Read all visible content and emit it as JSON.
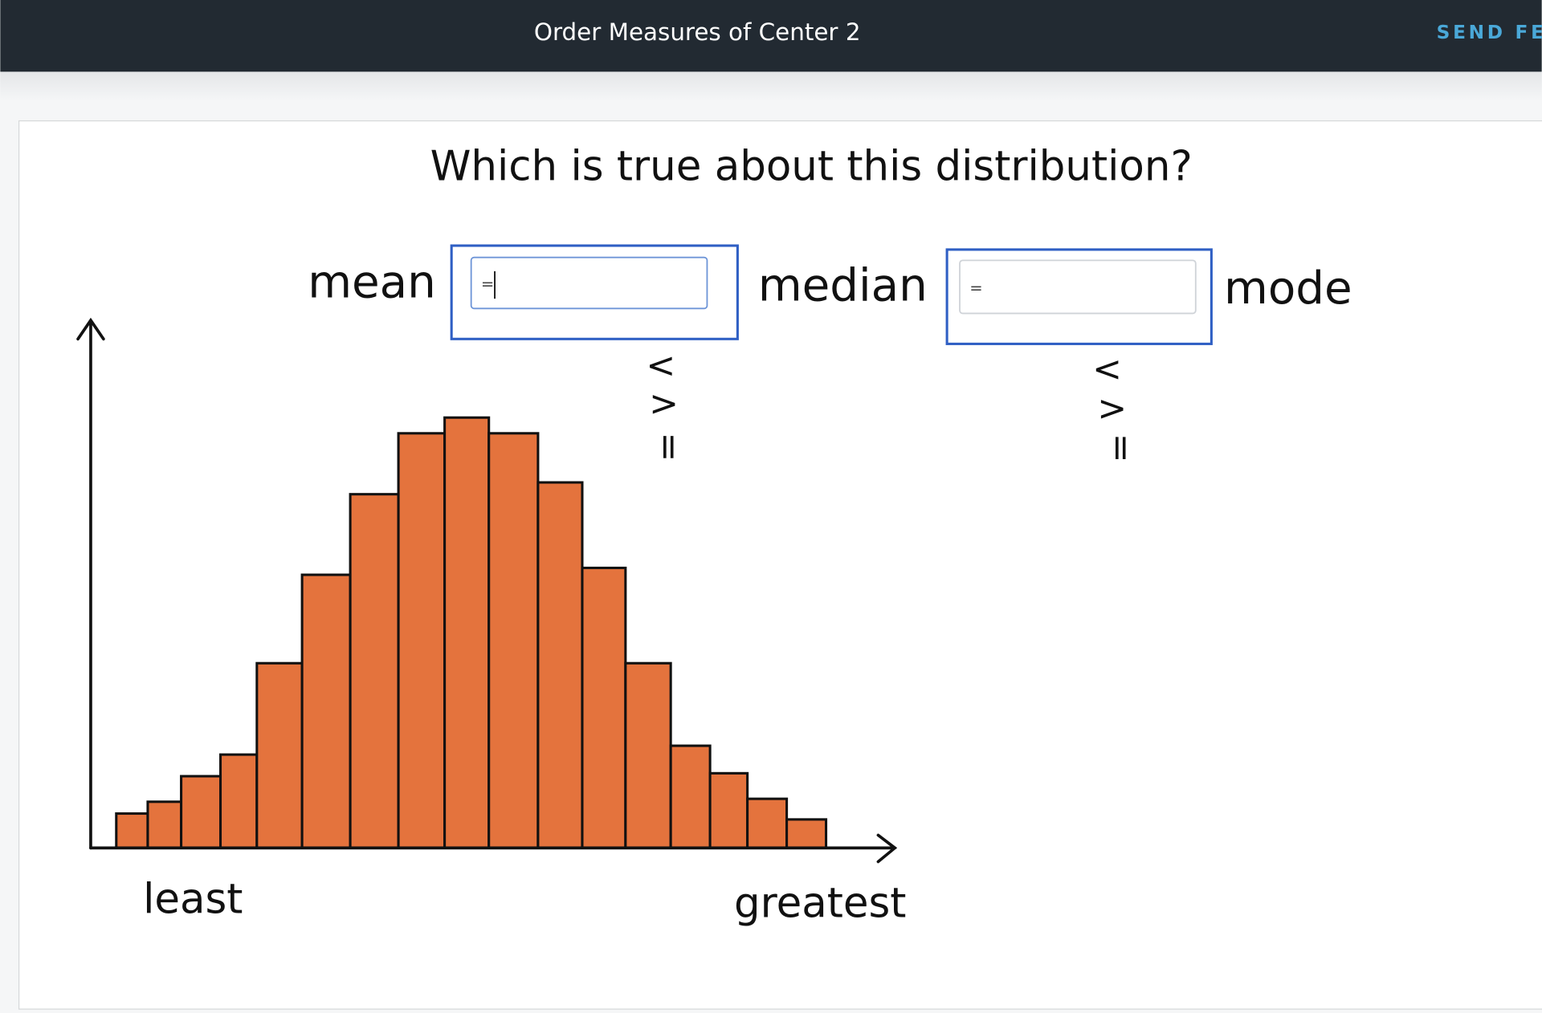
{
  "header": {
    "title": "Order Measures of Center 2",
    "send_feedback": "SEND FEE"
  },
  "question": "Which is true about this distribution?",
  "labels": {
    "mean": "mean",
    "median": "median",
    "mode": "mode"
  },
  "inputs": [
    "=",
    "="
  ],
  "options": [
    [
      "<",
      ">",
      "="
    ],
    [
      "<",
      ">",
      "="
    ]
  ],
  "axis": {
    "least": "least",
    "greatest": "greatest"
  }
}
